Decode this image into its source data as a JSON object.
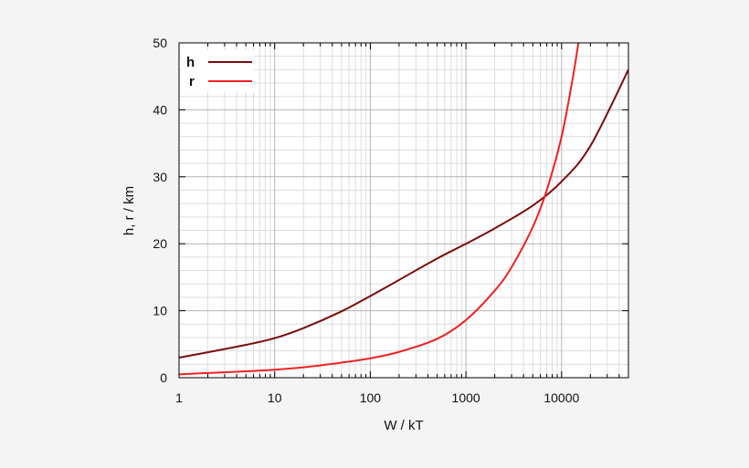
{
  "chart_data": {
    "type": "line",
    "title": "",
    "xlabel": "W / kT",
    "ylabel": "h, r / km",
    "x_scale": "log",
    "xlim": [
      1,
      50000
    ],
    "ylim": [
      0,
      50
    ],
    "x_ticks": [
      1,
      10,
      100,
      1000,
      10000
    ],
    "x_tick_labels": [
      "1",
      "10",
      "100",
      "1000",
      "10000"
    ],
    "y_ticks": [
      0,
      10,
      20,
      30,
      40,
      50
    ],
    "y_tick_labels": [
      "0",
      "10",
      "20",
      "30",
      "40",
      "50"
    ],
    "grid": true,
    "legend_position": "top-left",
    "series": [
      {
        "name": "h",
        "color": "#7a0c0c",
        "x": [
          1,
          2,
          5,
          10,
          20,
          50,
          100,
          200,
          500,
          1000,
          2000,
          5000,
          10000,
          20000,
          50000
        ],
        "y": [
          3.0,
          3.8,
          4.9,
          5.9,
          7.4,
          9.9,
          12.2,
          14.6,
          17.8,
          20.0,
          22.3,
          25.7,
          29.3,
          34.6,
          46.0
        ]
      },
      {
        "name": "r",
        "color": "#ee2222",
        "x": [
          1,
          2,
          5,
          10,
          20,
          50,
          100,
          200,
          500,
          1000,
          2000,
          3000,
          5000,
          7000,
          10000,
          13000,
          15000
        ],
        "y": [
          0.5,
          0.7,
          0.95,
          1.2,
          1.55,
          2.25,
          2.9,
          3.85,
          5.8,
          8.6,
          13.0,
          16.5,
          22.5,
          28.0,
          36.0,
          44.5,
          50.0
        ]
      }
    ]
  }
}
